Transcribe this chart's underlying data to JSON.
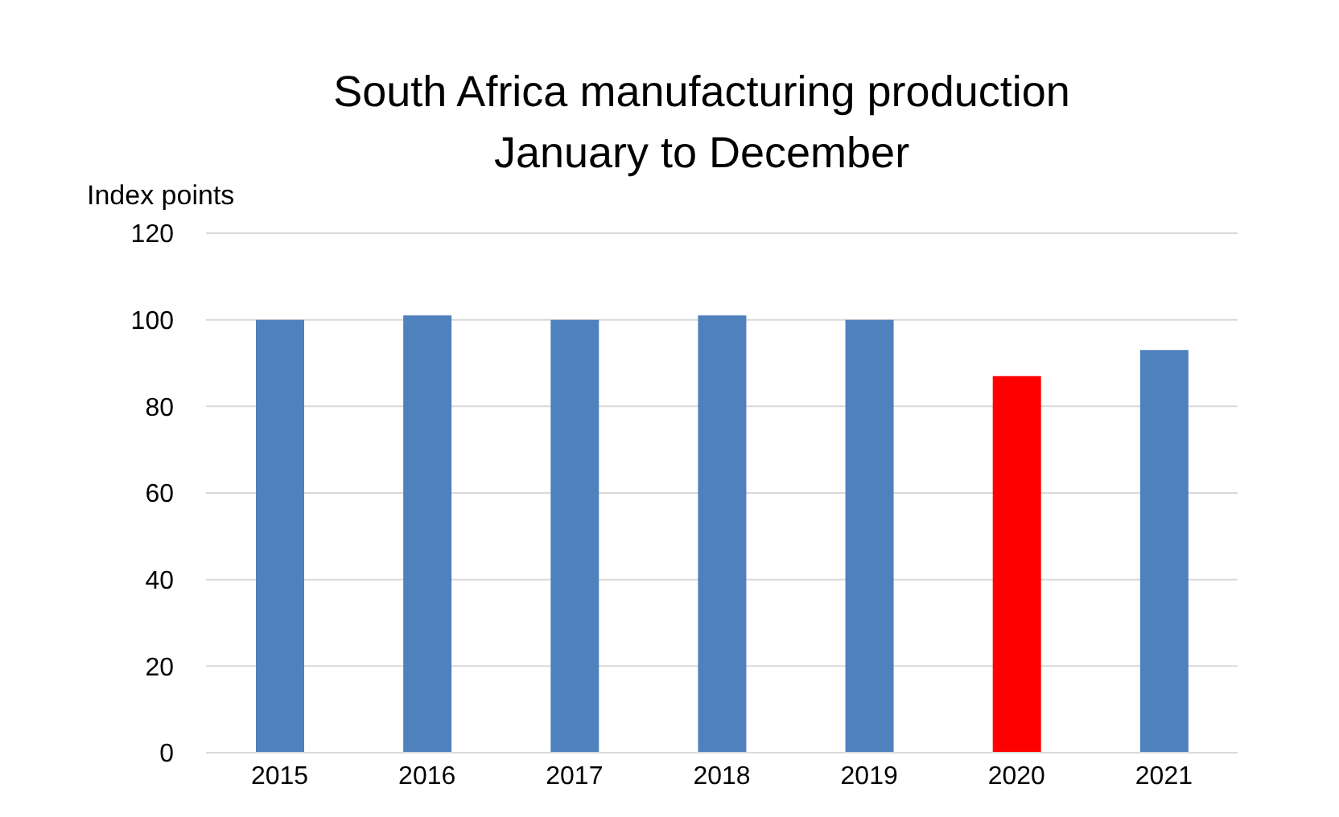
{
  "chart_data": {
    "type": "bar",
    "title": "South Africa manufacturing production\nJanuary to December",
    "ylabel": "Index points",
    "categories": [
      "2015",
      "2016",
      "2017",
      "2018",
      "2019",
      "2020",
      "2021"
    ],
    "values": [
      100,
      101,
      100,
      101,
      100,
      87,
      93
    ],
    "colors": [
      "#4f81bd",
      "#4f81bd",
      "#4f81bd",
      "#4f81bd",
      "#4f81bd",
      "#ff0000",
      "#4f81bd"
    ],
    "ylim": [
      0,
      120
    ],
    "yticks": [
      0,
      20,
      40,
      60,
      80,
      100,
      120
    ],
    "grid": "y"
  }
}
